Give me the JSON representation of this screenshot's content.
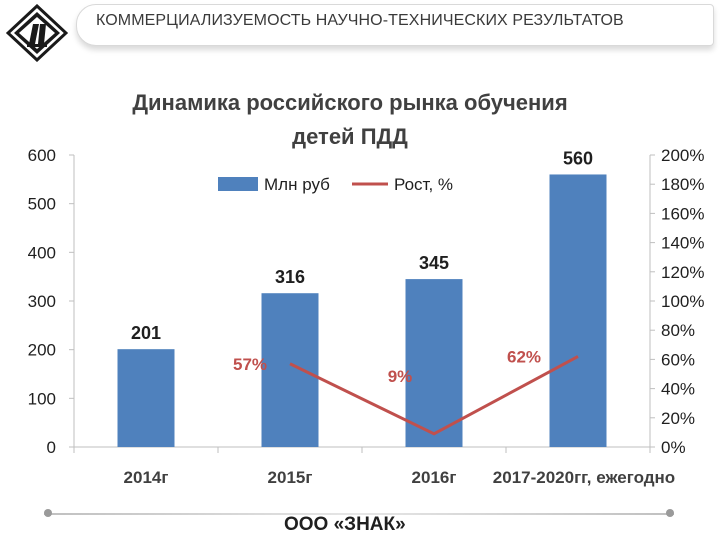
{
  "header": {
    "title": "КОММЕРЦИАЛИЗУЕМОСТЬ НАУЧНО-ТЕХНИЧЕСКИХ РЕЗУЛЬТАТОВ",
    "logo_icon": "road-sign-logo-icon"
  },
  "footer": {
    "company": "ООО «ЗНАК»"
  },
  "colors": {
    "bar": "#4f81bd",
    "line": "#c0504d",
    "growth_label": "#c0504d"
  },
  "chart_data": {
    "type": "bar",
    "title_line1": "Динамика российского рынка обучения",
    "title_line2": "детей ПДД",
    "categories": [
      "2014г",
      "2015г",
      "2016г",
      "2017-2020гг, ежегодно"
    ],
    "series": [
      {
        "name": "Млн руб",
        "type": "bar",
        "axis": "left",
        "values": [
          201,
          316,
          345,
          560
        ],
        "labels": [
          "201",
          "316",
          "345",
          "560"
        ]
      },
      {
        "name": "Рост, %",
        "type": "line",
        "axis": "right",
        "values": [
          null,
          57,
          9,
          62
        ],
        "labels": [
          "",
          "57%",
          "9%",
          "62%"
        ]
      }
    ],
    "y_left": {
      "min": 0,
      "max": 600,
      "ticks": [
        "0",
        "100",
        "200",
        "300",
        "400",
        "500",
        "600"
      ]
    },
    "y_right": {
      "min": 0,
      "max": 200,
      "ticks": [
        "0%",
        "20%",
        "40%",
        "60%",
        "80%",
        "100%",
        "120%",
        "140%",
        "160%",
        "180%",
        "200%"
      ]
    },
    "legend": "top-center",
    "grid": false
  }
}
